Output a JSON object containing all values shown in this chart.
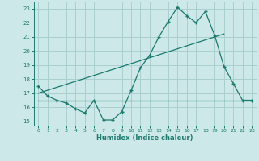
{
  "xlabel": "Humidex (Indice chaleur)",
  "bg_color": "#cce8e8",
  "grid_color": "#aacfcf",
  "line_color": "#1a7a6e",
  "xlim": [
    -0.5,
    23.5
  ],
  "ylim": [
    14.7,
    23.5
  ],
  "xticks": [
    0,
    1,
    2,
    3,
    4,
    5,
    6,
    7,
    8,
    9,
    10,
    11,
    12,
    13,
    14,
    15,
    16,
    17,
    18,
    19,
    20,
    21,
    22,
    23
  ],
  "yticks": [
    15,
    16,
    17,
    18,
    19,
    20,
    21,
    22,
    23
  ],
  "series1_x": [
    0,
    1,
    2,
    3,
    4,
    5,
    6,
    7,
    8,
    9,
    10,
    11,
    12,
    13,
    14,
    15,
    16,
    17,
    18,
    19,
    20,
    21,
    22,
    23
  ],
  "series1_y": [
    17.5,
    16.8,
    16.5,
    16.3,
    15.9,
    15.6,
    16.5,
    15.1,
    15.1,
    15.7,
    17.2,
    18.8,
    19.7,
    21.0,
    22.1,
    23.1,
    22.5,
    22.0,
    22.8,
    21.1,
    18.9,
    17.7,
    16.5,
    16.5
  ],
  "series2_x": [
    0,
    23
  ],
  "series2_y": [
    16.5,
    16.5
  ],
  "series3_x": [
    0,
    20
  ],
  "series3_y": [
    17.0,
    21.2
  ]
}
